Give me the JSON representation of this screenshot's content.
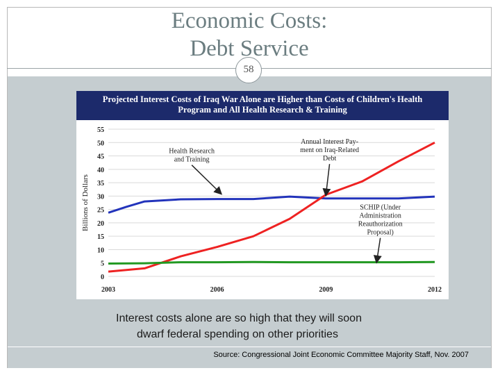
{
  "slide": {
    "title_line1": "Economic Costs:",
    "title_line2": "Debt Service",
    "number": "58",
    "caption_line1": "Interest costs alone are so high that they will soon",
    "caption_line2": "dwarf federal spending on other priorities",
    "source": "Source: Congressional Joint Economic Committee Majority Staff, Nov. 2007"
  },
  "chart_data": {
    "type": "line",
    "title_line1": "Projected Interest Costs of Iraq War Alone are Higher than Costs of Children's Health",
    "title_line2": "Program and All Health Research & Training",
    "ylabel": "Billions of Dollars",
    "xlabel": "",
    "ylim": [
      0,
      55
    ],
    "xlim": [
      2003,
      2012
    ],
    "yticks": [
      0,
      5,
      10,
      15,
      20,
      25,
      30,
      35,
      40,
      45,
      50,
      55
    ],
    "xticks": [
      2003,
      2006,
      2009,
      2012
    ],
    "grid": true,
    "series": [
      {
        "name": "Health Research and Training",
        "color": "#2233bb",
        "x": [
          2003,
          2003.5,
          2004,
          2005,
          2006,
          2007,
          2008,
          2009,
          2010,
          2011,
          2012
        ],
        "values": [
          23.8,
          26,
          28,
          28.8,
          28.9,
          28.9,
          29.8,
          29.1,
          29.1,
          29.1,
          29.8
        ]
      },
      {
        "name": "Annual Interest Payment on Iraq-Related Debt",
        "color": "#ee2222",
        "x": [
          2003,
          2004,
          2005,
          2006,
          2007,
          2008,
          2009,
          2010,
          2011,
          2012
        ],
        "values": [
          1.8,
          3,
          7.5,
          11,
          15,
          21.5,
          30.5,
          35.5,
          43,
          50
        ]
      },
      {
        "name": "SCHIP (Under Administration Reauthorization Proposal)",
        "color": "#229922",
        "x": [
          2003,
          2004,
          2005,
          2006,
          2007,
          2008,
          2009,
          2010,
          2011,
          2012
        ],
        "values": [
          4.8,
          4.9,
          5.3,
          5.3,
          5.4,
          5.3,
          5.3,
          5.3,
          5.3,
          5.4
        ]
      }
    ],
    "annotations": [
      {
        "lines": [
          "Health Research",
          "and Training"
        ],
        "x": 2005.3,
        "y": 46,
        "arrow_to": [
          2006.1,
          31
        ]
      },
      {
        "lines": [
          "Annual Interest Pay-",
          "ment on Iraq-Related",
          "Debt"
        ],
        "x": 2009.1,
        "y": 49.5,
        "arrow_to": [
          2009.0,
          30.5
        ]
      },
      {
        "lines": [
          "SCHIP (Under",
          "Administration",
          "Reauthorization",
          "Proposal)"
        ],
        "x": 2010.5,
        "y": 25,
        "arrow_to": [
          2010.4,
          5.5
        ]
      }
    ]
  }
}
